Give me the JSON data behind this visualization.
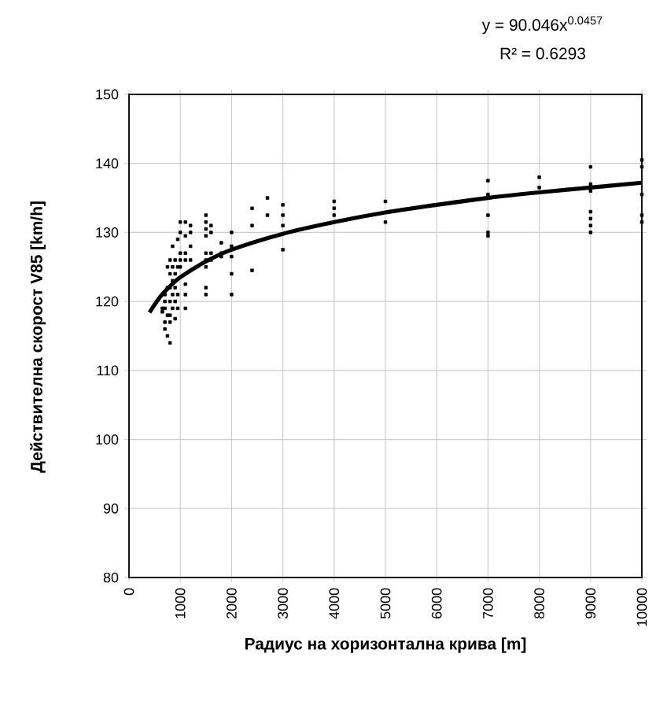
{
  "chart_data": {
    "type": "scatter",
    "xlabel": "Радиус на хоризонтална крива [m]",
    "ylabel": "Действителна скорост V85 [km/h]",
    "annotations": [
      "y = 90.046x$^{0.0457}$",
      "R² = 0.6293"
    ],
    "series": [
      {
        "color": "#000000",
        "marker": "square",
        "x": [
          650,
          650,
          700,
          700,
          700,
          700,
          700,
          750,
          750,
          750,
          750,
          800,
          800,
          800,
          800,
          800,
          800,
          800,
          850,
          850,
          850,
          850,
          850,
          900,
          900,
          900,
          900,
          900,
          950,
          950,
          950,
          950,
          1000,
          1000,
          1000,
          1000,
          1000,
          1100,
          1100,
          1100,
          1100,
          1100,
          1100,
          1100,
          1200,
          1200,
          1200,
          1200,
          1500,
          1500,
          1500,
          1500,
          1500,
          1500,
          1500,
          1500,
          1500,
          1600,
          1600,
          1600,
          1600,
          1800,
          1800,
          1800,
          2000,
          2000,
          2000,
          2000,
          2000,
          2400,
          2400,
          2400,
          2700,
          2700,
          3000,
          3000,
          3000,
          3000,
          4000,
          4000,
          4000,
          5000,
          5000,
          7000,
          7000,
          7000,
          7000,
          7000,
          8000,
          8000,
          9000,
          9000,
          9000,
          9000,
          9000,
          9000,
          9000,
          10000,
          10000,
          10000,
          10000,
          10000
        ],
        "values": [
          119,
          118.5,
          116,
          117,
          119,
          120,
          121,
          115,
          118,
          122,
          125,
          114,
          117,
          118,
          120,
          122,
          124,
          126,
          119,
          121,
          123,
          125,
          128,
          117.5,
          120,
          122,
          124,
          126,
          119,
          121,
          125,
          129,
          125,
          126,
          127,
          130,
          131.5,
          119,
          121,
          122.5,
          126,
          127,
          129.5,
          131.5,
          130,
          128,
          126,
          131,
          121,
          122,
          125,
          126,
          127,
          129.5,
          130.5,
          131.5,
          132.5,
          127,
          130,
          131,
          126,
          127,
          126.5,
          128.5,
          121,
          124,
          126.5,
          128,
          130,
          133.5,
          131,
          124.5,
          135,
          132.5,
          131,
          132.5,
          134,
          127.5,
          132.5,
          133.5,
          134.5,
          134.5,
          131.5,
          137.5,
          135.5,
          132.5,
          130,
          129.5,
          138,
          136.5,
          139.5,
          137,
          136,
          133,
          132,
          131,
          130,
          140.5,
          139.5,
          135.5,
          132.5,
          131.5
        ]
      },
      {
        "type": "line",
        "color": "#000000",
        "marker": "none",
        "x": [
          400,
          600,
          800,
          1000,
          1500,
          2000,
          3000,
          4000,
          5000,
          6000,
          7000,
          8000,
          9000,
          10000
        ],
        "values": [
          118.4,
          120.6,
          122.2,
          123.5,
          125.8,
          127.5,
          129.8,
          131.5,
          132.9,
          134.0,
          135.0,
          135.8,
          136.5,
          137.2
        ]
      }
    ],
    "xlim": [
      0,
      10000
    ],
    "xticks": [
      0,
      1000,
      2000,
      3000,
      4000,
      5000,
      6000,
      7000,
      8000,
      9000,
      10000
    ],
    "ylim": [
      80,
      150
    ],
    "yticks": [
      80,
      90,
      100,
      110,
      120,
      130,
      140,
      150
    ],
    "grid": true
  }
}
